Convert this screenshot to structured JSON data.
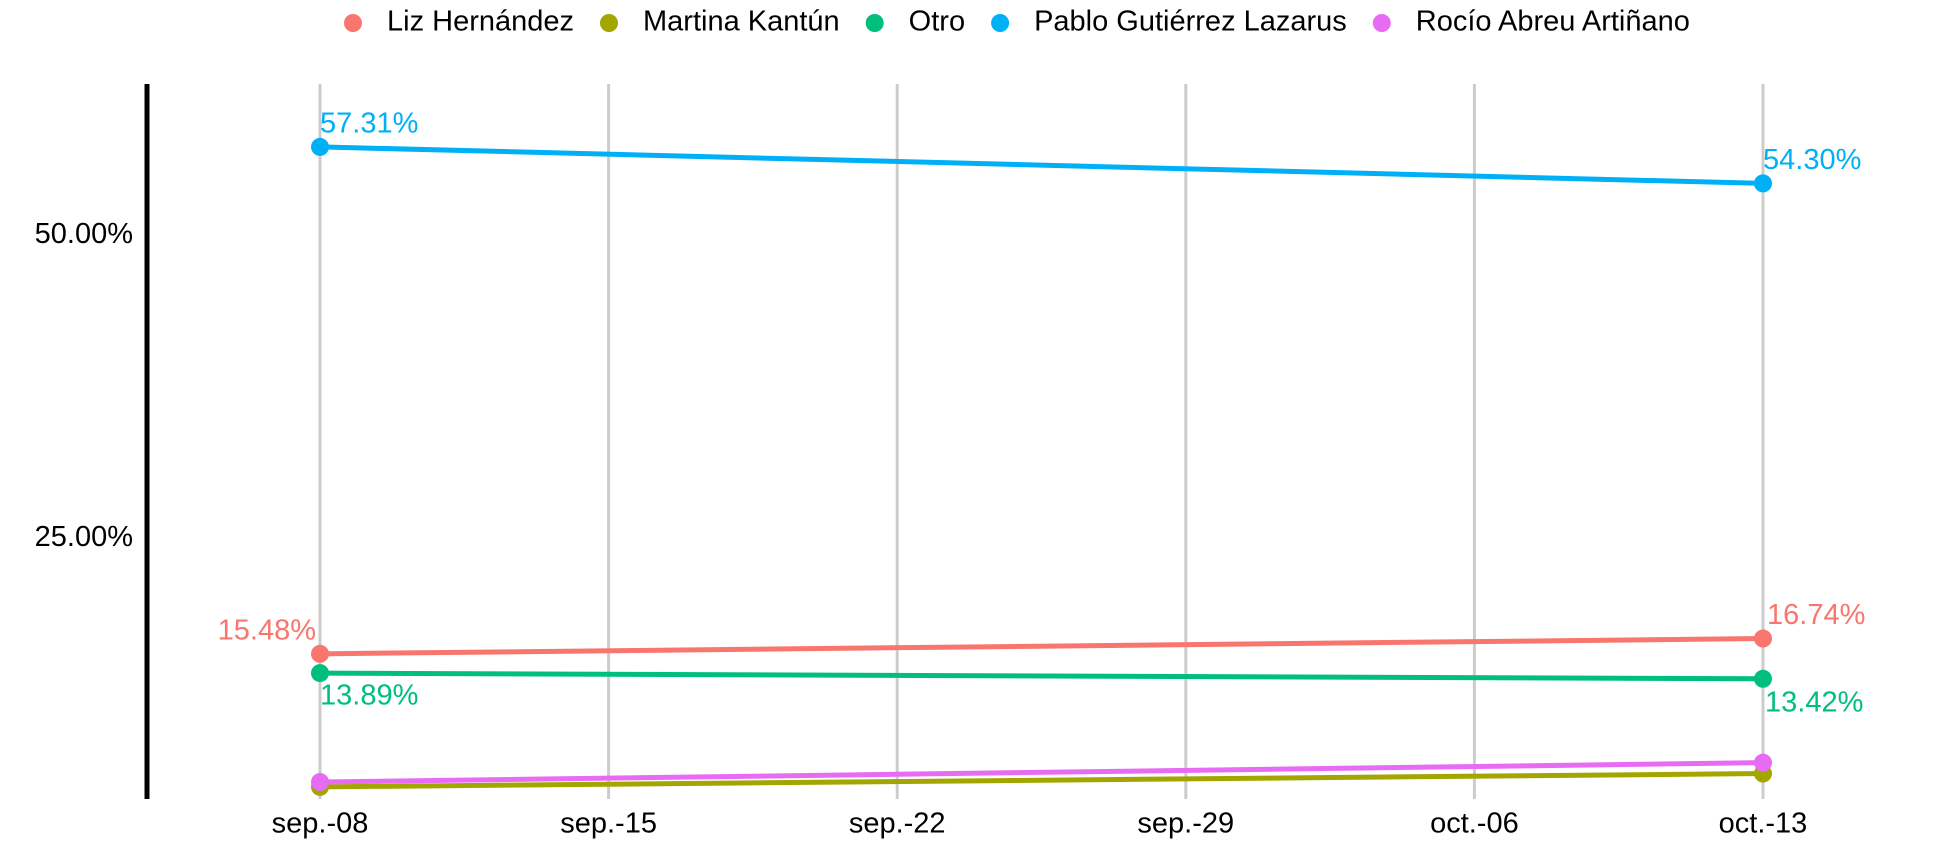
{
  "chart_data": {
    "type": "line",
    "x": [
      "sep.-08",
      "oct.-13"
    ],
    "xticks": [
      "sep.-08",
      "sep.-15",
      "sep.-22",
      "sep.-29",
      "oct.-06",
      "oct.-13"
    ],
    "ylim": [
      3.5,
      62.5
    ],
    "yticks": [
      {
        "value": 25,
        "label": "25.00%"
      },
      {
        "value": 50,
        "label": "50.00%"
      }
    ],
    "grid": "x",
    "legend": "top",
    "series": [
      {
        "name": "Liz Hernández",
        "color": "#F8766D",
        "values": [
          15.48,
          16.74
        ],
        "value_labels": [
          "15.48%",
          "16.74%"
        ]
      },
      {
        "name": "Martina Kantún",
        "color": "#A3A500",
        "values": [
          4.5,
          5.6
        ]
      },
      {
        "name": "Otro",
        "color": "#00BF7D",
        "values": [
          13.89,
          13.42
        ],
        "value_labels": [
          "13.89%",
          "13.42%"
        ]
      },
      {
        "name": "Pablo Gutiérrez Lazarus",
        "color": "#00B0F6",
        "values": [
          57.31,
          54.3
        ],
        "value_labels": [
          "57.31%",
          "54.30%"
        ]
      },
      {
        "name": "Rocío Abreu Artiñano",
        "color": "#E76BF3",
        "values": [
          4.9,
          6.5
        ]
      }
    ]
  }
}
